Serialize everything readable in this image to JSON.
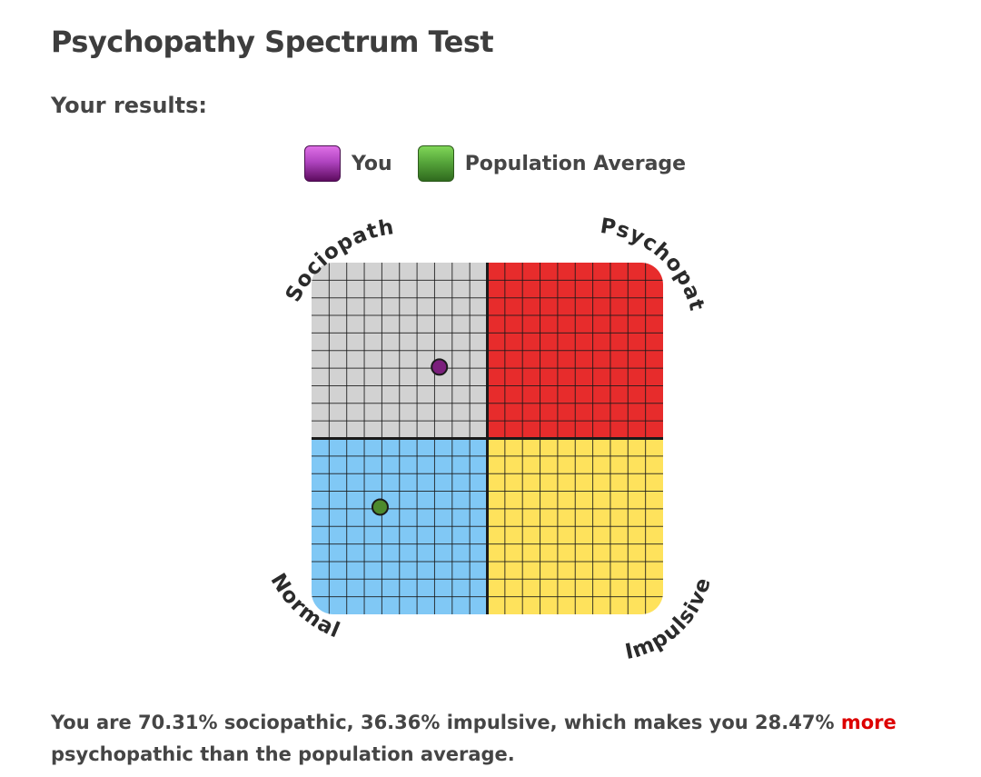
{
  "page": {
    "title": "Psychopathy Spectrum Test",
    "subtitle": "Your results:"
  },
  "legend": {
    "you_label": "You",
    "avg_label": "Population Average"
  },
  "chart_data": {
    "type": "scatter",
    "title": "",
    "quadrant_labels": {
      "top_left": "Sociopath",
      "top_right": "Psychopath",
      "bottom_left": "Normal",
      "bottom_right": "Impulsive"
    },
    "quadrant_colors": {
      "top_left": "#d2d2d2",
      "top_right": "#e72c2c",
      "bottom_left": "#80c8f5",
      "bottom_right": "#fee25c"
    },
    "x_axis": {
      "label": "",
      "range": [
        0,
        100
      ],
      "unit": "% impulsive"
    },
    "y_axis": {
      "label": "",
      "range": [
        0,
        100
      ],
      "unit": "% sociopathic"
    },
    "grid": true,
    "legend_position": "top",
    "series": [
      {
        "name": "You",
        "x": 36.36,
        "y": 70.31,
        "color": "#7b1f7c"
      },
      {
        "name": "Population Average",
        "x": 19.5,
        "y": 30.5,
        "color": "#4d8a2e"
      }
    ]
  },
  "summary": {
    "part1": "You are 70.31% sociopathic, 36.36% impulsive, which makes you 28.47%",
    "highlight": "more",
    "part2": "psychopathic than the population average.",
    "highlight_color": "#dd0000"
  }
}
